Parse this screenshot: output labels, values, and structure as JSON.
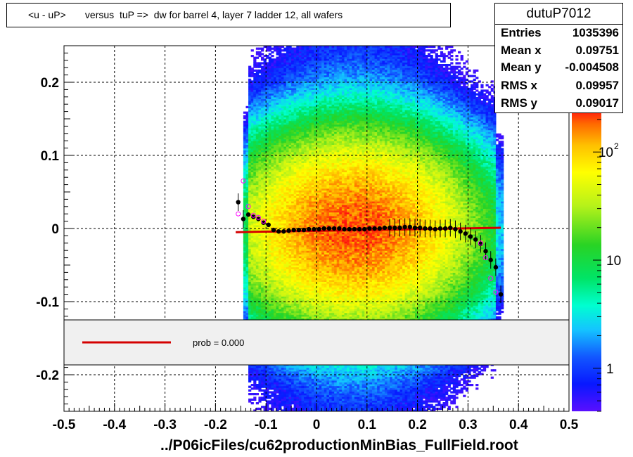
{
  "title": "<u - uP>       versus  tuP =>  dw for barrel 4, layer 7 ladder 12, all wafers",
  "stats": {
    "name": "dutuP7012",
    "rows": [
      {
        "label": "Entries",
        "value": "1035396"
      },
      {
        "label": "Mean x",
        "value": "0.09751"
      },
      {
        "label": "Mean y",
        "value": "-0.004508"
      },
      {
        "label": "RMS x",
        "value": "0.09957"
      },
      {
        "label": "RMS y",
        "value": "0.09017"
      }
    ]
  },
  "legend": {
    "text": "prob = 0.000",
    "line_color": "#d40000"
  },
  "colors": {
    "fit": "#d40000",
    "profile": "#000000",
    "open_markers": "#ff00ff"
  },
  "chart_data": {
    "type": "heatmap",
    "title": "<u - uP>       versus  tuP =>  dw for barrel 4, layer 7 ladder 12, all wafers",
    "xlabel": "../P06icFiles/cu62productionMinBias_FullField.root",
    "ylabel": "",
    "xlim": [
      -0.5,
      0.5
    ],
    "ylim": [
      -0.25,
      0.25
    ],
    "x_ticks": [
      "-0.5",
      "-0.4",
      "-0.3",
      "-0.2",
      "-0.1",
      "0",
      "0.1",
      "0.2",
      "0.3",
      "0.4",
      "0.5"
    ],
    "y_ticks": [
      "-0.2",
      "-0.1",
      "0",
      "0.1",
      "0.2"
    ],
    "z_scale": "log",
    "z_ticks": [
      "1",
      "10",
      "10^2"
    ],
    "z_tick_values": [
      1,
      10,
      100
    ],
    "z_range": [
      0.4,
      250
    ],
    "grid": true,
    "data_x_range": [
      -0.145,
      0.37
    ],
    "profile": {
      "x": [
        -0.155,
        -0.145,
        -0.135,
        -0.125,
        -0.115,
        -0.105,
        -0.095,
        -0.085,
        -0.075,
        -0.065,
        -0.055,
        -0.045,
        -0.035,
        -0.025,
        -0.015,
        -0.005,
        0.005,
        0.015,
        0.025,
        0.035,
        0.045,
        0.055,
        0.065,
        0.075,
        0.085,
        0.095,
        0.105,
        0.115,
        0.125,
        0.135,
        0.145,
        0.155,
        0.165,
        0.175,
        0.185,
        0.195,
        0.205,
        0.215,
        0.225,
        0.235,
        0.245,
        0.255,
        0.265,
        0.275,
        0.285,
        0.295,
        0.305,
        0.315,
        0.325,
        0.335,
        0.345,
        0.355,
        0.365
      ],
      "y": [
        0.036,
        0.013,
        0.019,
        0.016,
        0.013,
        0.008,
        0.005,
        -0.002,
        -0.004,
        -0.004,
        -0.003,
        -0.002,
        -0.002,
        -0.002,
        -0.001,
        -0.001,
        -0.001,
        0.0,
        0.0,
        0.0,
        0.0,
        -0.001,
        -0.001,
        -0.001,
        -0.001,
        -0.001,
        0.0,
        0.0,
        0.0,
        0.001,
        0.001,
        0.001,
        0.001,
        0.002,
        0.002,
        0.001,
        0.001,
        0.0,
        0.0,
        -0.001,
        0.0,
        0.0,
        0.001,
        -0.001,
        -0.004,
        -0.007,
        -0.011,
        -0.015,
        -0.021,
        -0.031,
        -0.043,
        -0.053,
        -0.09
      ]
    },
    "open_points": {
      "x": [
        -0.155,
        -0.145,
        -0.135,
        -0.125,
        -0.115,
        -0.105,
        0.325,
        0.335,
        0.345,
        0.355
      ],
      "y": [
        0.02,
        0.065,
        0.03,
        0.018,
        0.015,
        0.01,
        -0.02,
        -0.04,
        -0.068,
        -0.087
      ]
    },
    "fit_line": {
      "x": [
        -0.16,
        0.365
      ],
      "y": [
        -0.005,
        0.001
      ]
    }
  }
}
